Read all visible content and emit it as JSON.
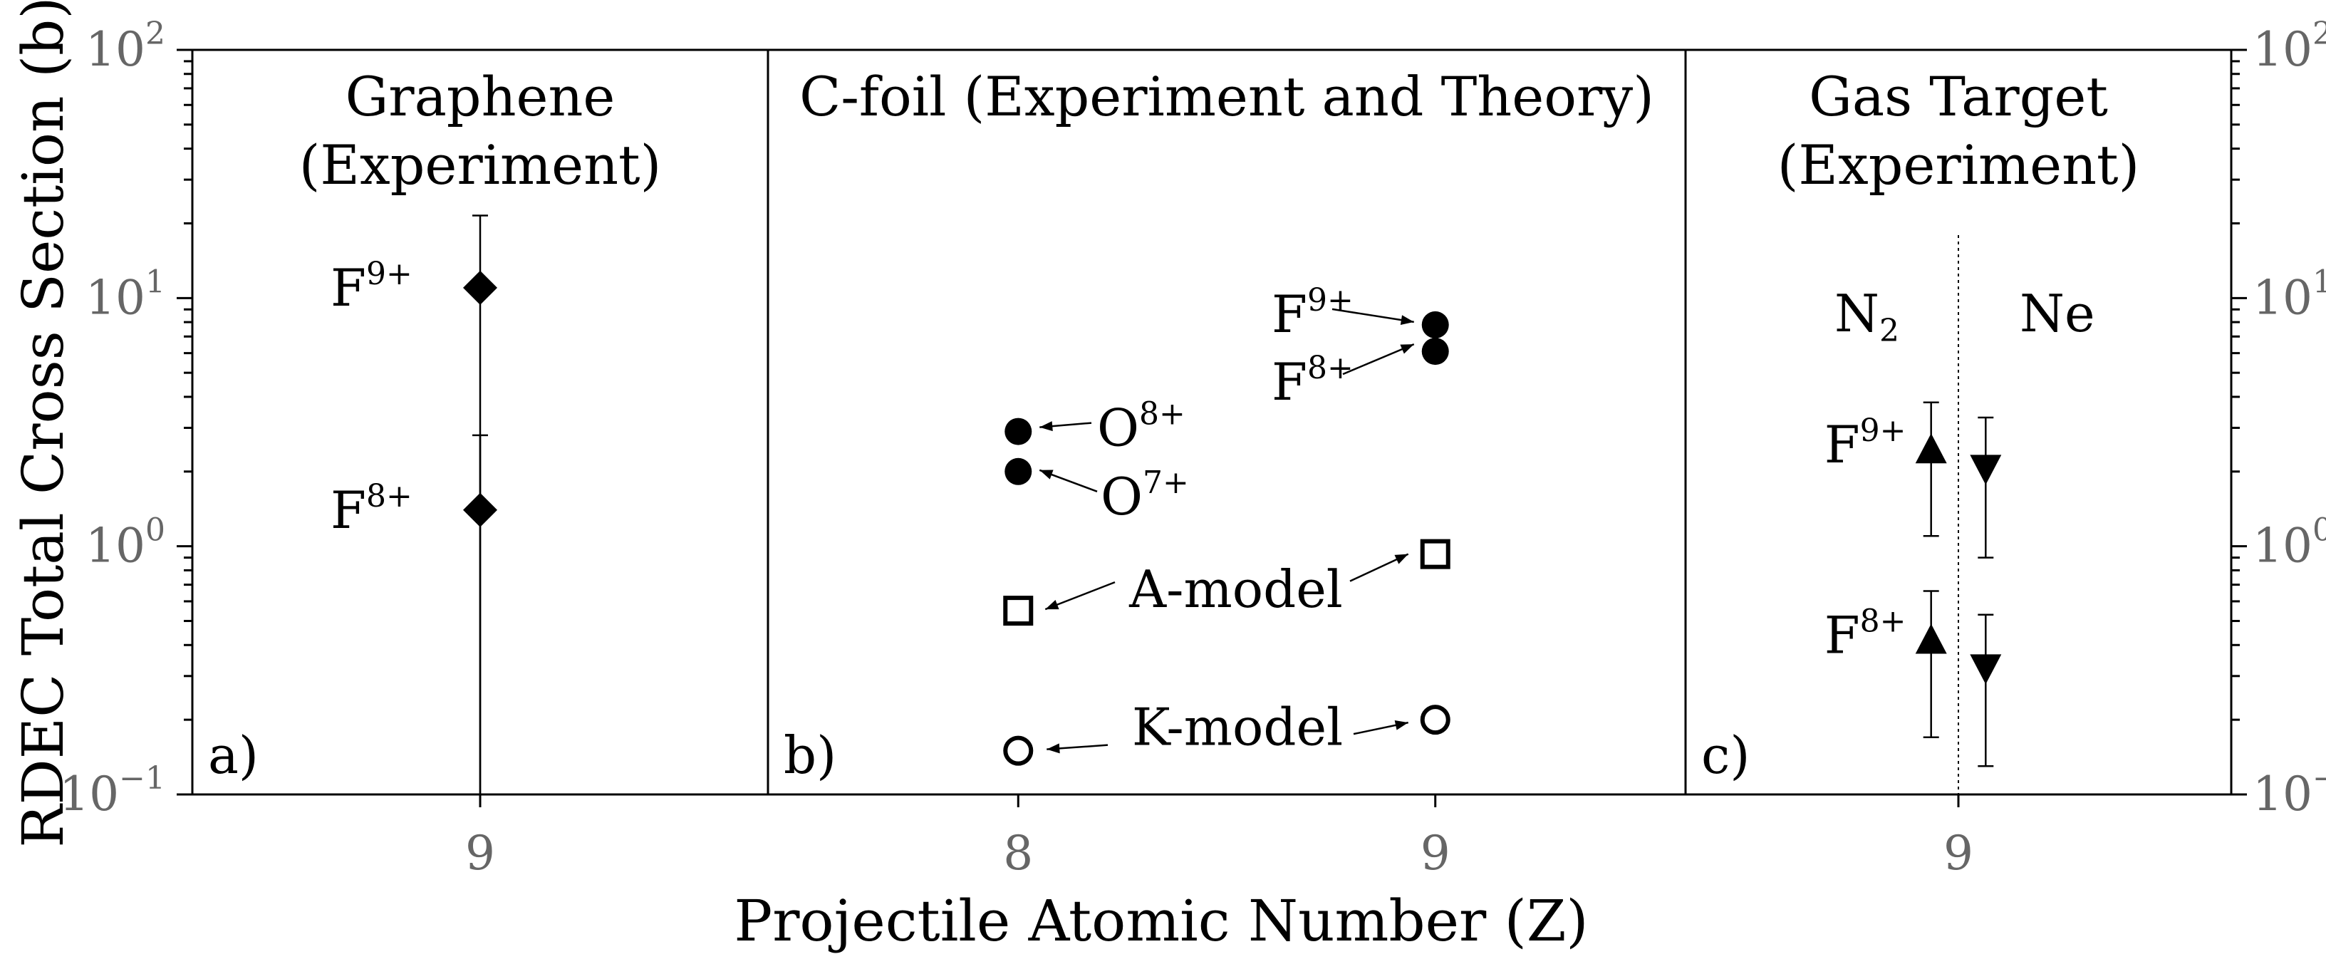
{
  "chart_data": {
    "type": "scatter",
    "xlabel": "Projectile Atomic Number (Z)",
    "ylabel": "RDEC Total Cross Section (b)",
    "yscale": "log",
    "ylim": [
      0.1,
      100
    ],
    "y_ticks": [
      {
        "value": 0.1,
        "base": "10",
        "exp": "−1"
      },
      {
        "value": 1,
        "base": "10",
        "exp": "0"
      },
      {
        "value": 10,
        "base": "10",
        "exp": "1"
      },
      {
        "value": 100,
        "base": "10",
        "exp": "2"
      }
    ],
    "grid": false,
    "panels": [
      {
        "id": "a",
        "letter": "a)",
        "title_lines": [
          "Graphene",
          "(Experiment)"
        ],
        "xlim": [
          8.5,
          9.5
        ],
        "x_ticks": [
          9
        ],
        "series": [
          {
            "marker": "diamond",
            "points": [
              {
                "x": 9,
                "y": 11.0,
                "yerr_low": 0.1,
                "yerr_high": 21.5,
                "label": "F",
                "label_sup": "9+"
              },
              {
                "x": 9,
                "y": 1.4,
                "yerr_low": 0.1,
                "yerr_high": 2.8,
                "label": "F",
                "label_sup": "8+"
              }
            ]
          }
        ]
      },
      {
        "id": "b",
        "letter": "b)",
        "title_lines": [
          "C-foil (Experiment and Theory)"
        ],
        "xlim": [
          7.4,
          9.6
        ],
        "x_ticks": [
          8,
          9
        ],
        "series": [
          {
            "marker": "circle-filled",
            "points": [
              {
                "x": 8,
                "y": 2.9,
                "label": "O",
                "label_sup": "8+"
              },
              {
                "x": 8,
                "y": 2.0,
                "label": "O",
                "label_sup": "7+"
              },
              {
                "x": 9,
                "y": 7.8,
                "label": "F",
                "label_sup": "9+"
              },
              {
                "x": 9,
                "y": 6.1,
                "label": "F",
                "label_sup": "8+"
              }
            ]
          },
          {
            "name": "A-model",
            "marker": "square-open",
            "points": [
              {
                "x": 8,
                "y": 0.55
              },
              {
                "x": 9,
                "y": 0.93
              }
            ]
          },
          {
            "name": "K-model",
            "marker": "circle-open",
            "points": [
              {
                "x": 8,
                "y": 0.15
              },
              {
                "x": 9,
                "y": 0.2
              }
            ]
          }
        ]
      },
      {
        "id": "c",
        "letter": "c)",
        "title_lines": [
          "Gas Target",
          "(Experiment)"
        ],
        "xlim": [
          8.5,
          9.5
        ],
        "x_ticks": [
          9
        ],
        "targets": [
          {
            "name": "N",
            "sub": "2"
          },
          {
            "name": "Ne",
            "sub": ""
          }
        ],
        "series": [
          {
            "name": "N2",
            "marker": "triangle-up",
            "points": [
              {
                "x": 8.95,
                "y": 2.4,
                "yerr_low": 1.1,
                "yerr_high": 3.8,
                "label": "F",
                "label_sup": "9+"
              },
              {
                "x": 8.95,
                "y": 0.41,
                "yerr_low": 0.17,
                "yerr_high": 0.66,
                "label": "F",
                "label_sup": "8+"
              }
            ]
          },
          {
            "name": "Ne",
            "marker": "triangle-down",
            "points": [
              {
                "x": 9.05,
                "y": 2.1,
                "yerr_low": 0.9,
                "yerr_high": 3.3
              },
              {
                "x": 9.05,
                "y": 0.33,
                "yerr_low": 0.13,
                "yerr_high": 0.53
              }
            ]
          }
        ]
      }
    ]
  }
}
